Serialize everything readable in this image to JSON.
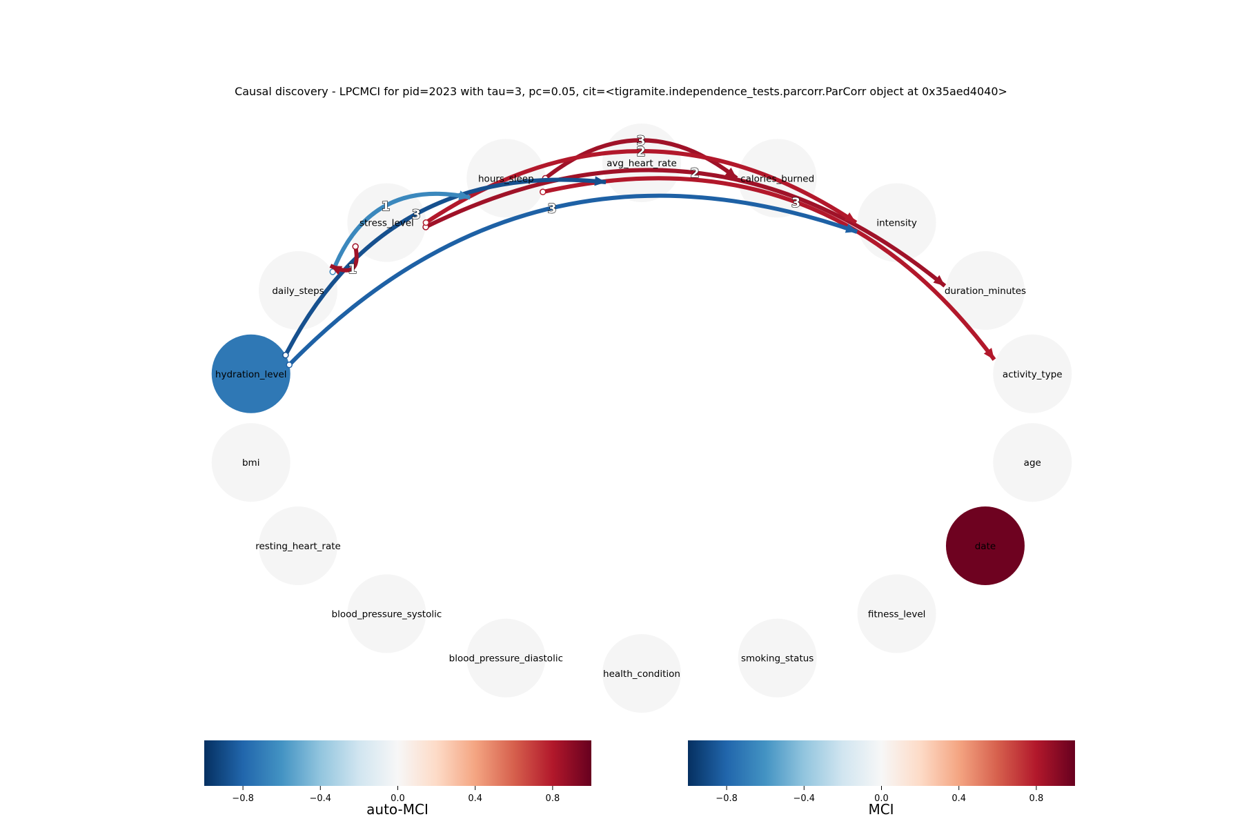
{
  "title": "Causal discovery - LPCMCI for pid=2023 with tau=3, pc=0.05, cit=<tigramite.independence_tests.parcorr.ParCorr object at 0x35aed4040>",
  "nodes": [
    {
      "id": "calories_burned",
      "label": "calories_burned",
      "auto_mci": null
    },
    {
      "id": "intensity",
      "label": "intensity",
      "auto_mci": null
    },
    {
      "id": "duration_minutes",
      "label": "duration_minutes",
      "auto_mci": null
    },
    {
      "id": "activity_type",
      "label": "activity_type",
      "auto_mci": null
    },
    {
      "id": "age",
      "label": "age",
      "auto_mci": null
    },
    {
      "id": "date",
      "label": "date",
      "auto_mci": 0.98
    },
    {
      "id": "fitness_level",
      "label": "fitness_level",
      "auto_mci": null
    },
    {
      "id": "smoking_status",
      "label": "smoking_status",
      "auto_mci": null
    },
    {
      "id": "health_condition",
      "label": "health_condition",
      "auto_mci": null
    },
    {
      "id": "blood_pressure_diastolic",
      "label": "blood_pressure_diastolic",
      "auto_mci": null
    },
    {
      "id": "blood_pressure_systolic",
      "label": "blood_pressure_systolic",
      "auto_mci": null
    },
    {
      "id": "resting_heart_rate",
      "label": "resting_heart_rate",
      "auto_mci": null
    },
    {
      "id": "bmi",
      "label": "bmi",
      "auto_mci": null
    },
    {
      "id": "hydration_level",
      "label": "hydration_level",
      "auto_mci": -0.72
    },
    {
      "id": "daily_steps",
      "label": "daily_steps",
      "auto_mci": null
    },
    {
      "id": "stress_level",
      "label": "stress_level",
      "auto_mci": null
    },
    {
      "id": "hours_sleep",
      "label": "hours_sleep",
      "auto_mci": null
    },
    {
      "id": "avg_heart_rate",
      "label": "avg_heart_rate",
      "auto_mci": null
    }
  ],
  "edges": [
    {
      "from": "hours_sleep",
      "to": "calories_burned",
      "lag": "3",
      "mci": 0.85
    },
    {
      "from": "stress_level",
      "to": "duration_minutes",
      "lag": "2",
      "mci": 0.85
    },
    {
      "from": "stress_level",
      "to": "intensity",
      "lag": "2",
      "mci": 0.8
    },
    {
      "from": "hours_sleep",
      "to": "activity_type",
      "lag": "3",
      "mci": 0.8
    },
    {
      "from": "hydration_level",
      "to": "intensity",
      "lag": "3",
      "mci": -0.82
    },
    {
      "from": "hydration_level",
      "to": "avg_heart_rate",
      "lag": "3",
      "mci": -0.88
    },
    {
      "from": "daily_steps",
      "to": "hours_sleep",
      "lag": "1",
      "mci": -0.65
    },
    {
      "from": "stress_level",
      "to": "daily_steps",
      "lag": "1",
      "mci": 0.85
    }
  ],
  "colorbars": [
    {
      "label": "auto-MCI",
      "ticks": [
        "−0.8",
        "−0.4",
        "0.0",
        "0.4",
        "0.8"
      ],
      "tick_values": [
        -0.8,
        -0.4,
        0.0,
        0.4,
        0.8
      ],
      "range": [
        -1,
        1
      ]
    },
    {
      "label": "MCI",
      "ticks": [
        "−0.8",
        "−0.4",
        "0.0",
        "0.4",
        "0.8"
      ],
      "tick_values": [
        -0.8,
        -0.4,
        0.0,
        0.4,
        0.8
      ],
      "range": [
        -1,
        1
      ]
    }
  ],
  "colormap": "RdBu_r",
  "colormap_stops": [
    "#053061",
    "#2166ac",
    "#4393c3",
    "#92c5de",
    "#d1e5f0",
    "#f7f7f7",
    "#fddbc7",
    "#f4a582",
    "#d6604d",
    "#b2182b",
    "#67001f"
  ],
  "empty_node_color": "#f5f5f5"
}
